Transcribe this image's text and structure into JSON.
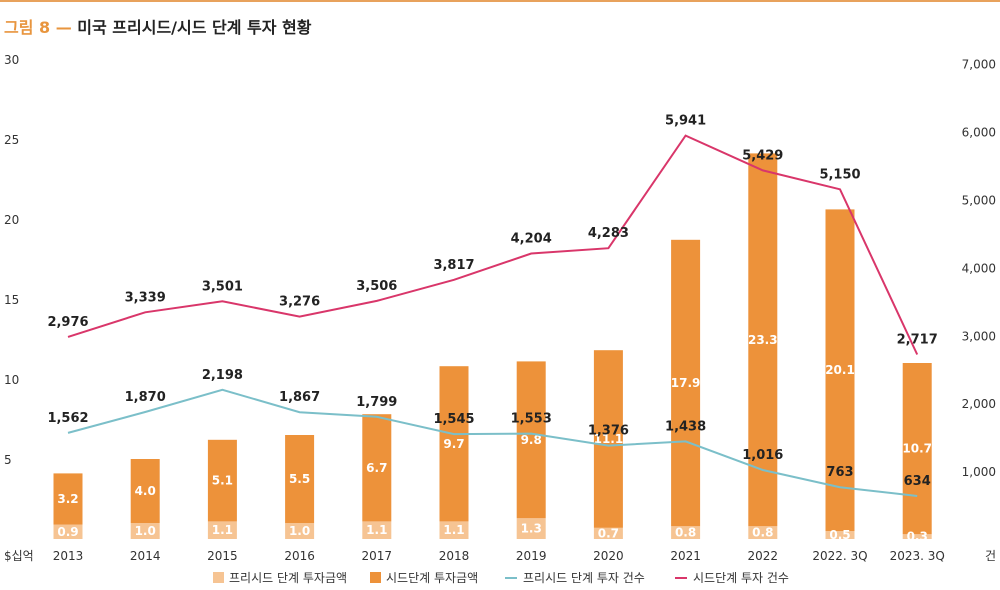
{
  "figure": {
    "label": "그림 8 —",
    "title": "미국 프리시드/시드 단계 투자 현황"
  },
  "chart_data": {
    "type": "bar",
    "categories": [
      "2013",
      "2014",
      "2015",
      "2016",
      "2017",
      "2018",
      "2019",
      "2020",
      "2021",
      "2022",
      "2022. 3Q",
      "2023. 3Q"
    ],
    "left_axis": {
      "label": "$십억",
      "ticks": [
        "5",
        "10",
        "15",
        "20",
        "25",
        "30"
      ],
      "ylim": [
        0,
        30
      ]
    },
    "right_axis": {
      "label": "건",
      "ticks": [
        "1,000",
        "2,000",
        "3,000",
        "4,000",
        "5,000",
        "6,000",
        "7,000"
      ],
      "ylim": [
        0,
        7000
      ]
    },
    "series": [
      {
        "name": "프리시드 단계 투자금액",
        "kind": "bar",
        "color": "#f6c493",
        "values": [
          0.9,
          1.0,
          1.1,
          1.0,
          1.1,
          1.1,
          1.3,
          0.7,
          0.8,
          0.8,
          0.5,
          0.3
        ],
        "labels": [
          "0.9",
          "1.0",
          "1.1",
          "1.0",
          "1.1",
          "1.1",
          "1.3",
          "0.7",
          "0.8",
          "0.8",
          "0.5",
          "0.3"
        ]
      },
      {
        "name": "시드단계 투자금액",
        "kind": "bar",
        "color": "#ed923a",
        "values": [
          3.2,
          4.0,
          5.1,
          5.5,
          6.7,
          9.7,
          9.8,
          11.1,
          17.9,
          23.3,
          20.1,
          10.7
        ],
        "labels": [
          "3.2",
          "4.0",
          "5.1",
          "5.5",
          "6.7",
          "9.7",
          "9.8",
          "11.1",
          "17.9",
          "23.3",
          "20.1",
          "10.7"
        ]
      },
      {
        "name": "프리시드 단계 투자 건수",
        "kind": "line",
        "color": "#7bbfc9",
        "values": [
          1562,
          1870,
          2198,
          1867,
          1799,
          1545,
          1553,
          1376,
          1438,
          1016,
          763,
          634
        ],
        "labels": [
          "1,562",
          "1,870",
          "2,198",
          "1,867",
          "1,799",
          "1,545",
          "1,553",
          "1,376",
          "1,438",
          "1,016",
          "763",
          "634"
        ]
      },
      {
        "name": "시드단계 투자 건수",
        "kind": "line",
        "color": "#d9366a",
        "values": [
          2976,
          3339,
          3501,
          3276,
          3506,
          3817,
          4204,
          4283,
          5941,
          5429,
          5150,
          2717
        ],
        "labels": [
          "2,976",
          "3,339",
          "3,501",
          "3,276",
          "3,506",
          "3,817",
          "4,204",
          "4,283",
          "5,941",
          "5,429",
          "5,150",
          "2,717"
        ]
      }
    ],
    "legend": "bottom",
    "grid": false
  }
}
